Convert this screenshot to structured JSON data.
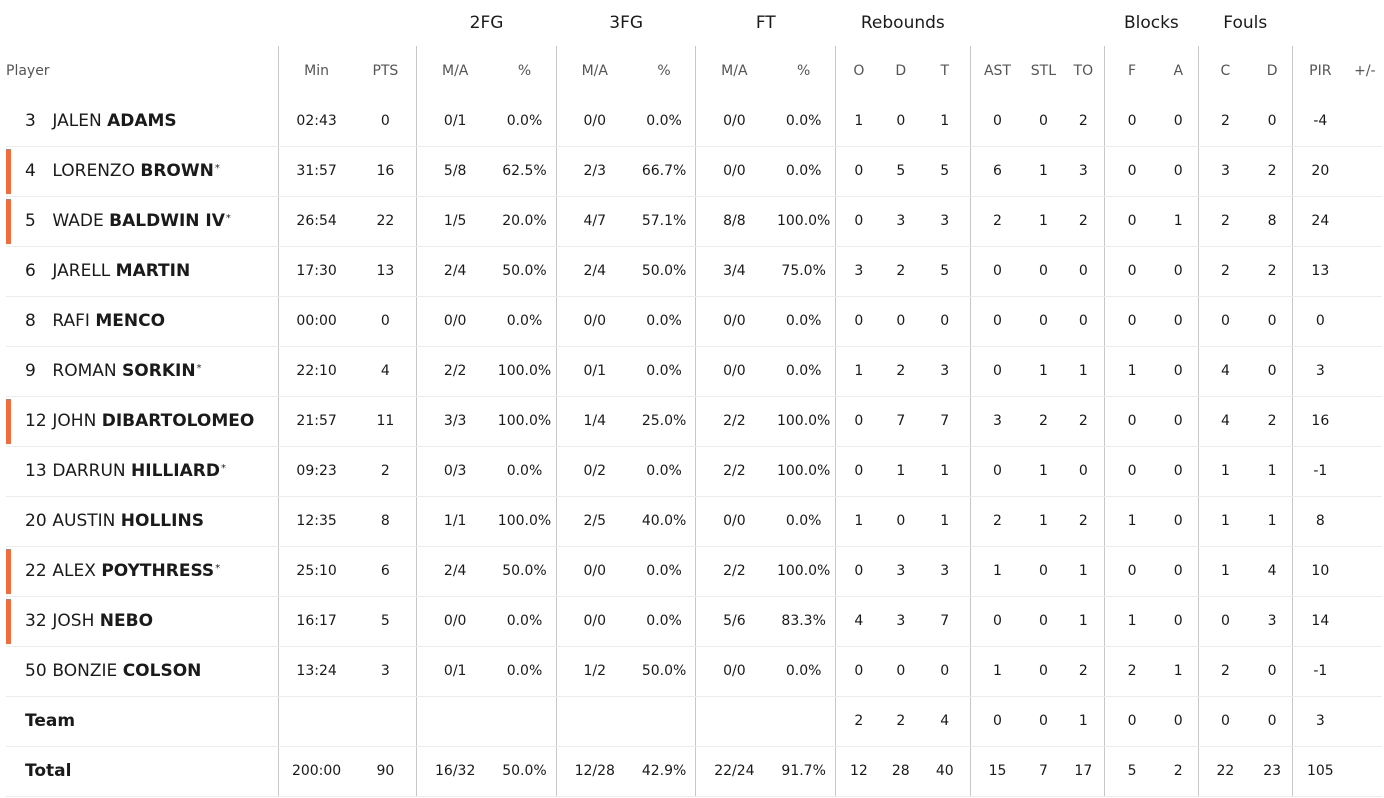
{
  "headers": {
    "groups": {
      "two_fg": "2FG",
      "three_fg": "3FG",
      "ft": "FT",
      "rebounds": "Rebounds",
      "blocks": "Blocks",
      "fouls": "Fouls"
    },
    "sub": {
      "player": "Player",
      "min": "Min",
      "pts": "PTS",
      "two_ma": "M/A",
      "two_pct": "%",
      "three_ma": "M/A",
      "three_pct": "%",
      "ft_ma": "M/A",
      "ft_pct": "%",
      "reb_o": "O",
      "reb_d": "D",
      "reb_t": "T",
      "ast": "AST",
      "stl": "STL",
      "to": "TO",
      "blk_f": "F",
      "blk_a": "A",
      "foul_c": "C",
      "foul_d": "D",
      "pir": "PIR",
      "pm": "+/-"
    }
  },
  "colors": {
    "starter_marker": "#f26b3a",
    "divider": "#c8c8c8"
  },
  "players": [
    {
      "num": "3",
      "first": "JALEN",
      "last": "ADAMS",
      "star": "",
      "starter": false,
      "min": "02:43",
      "pts": "0",
      "two_ma": "0/1",
      "two_pct": "0.0%",
      "three_ma": "0/0",
      "three_pct": "0.0%",
      "ft_ma": "0/0",
      "ft_pct": "0.0%",
      "o": "1",
      "d": "0",
      "t": "1",
      "ast": "0",
      "stl": "0",
      "to": "2",
      "bf": "0",
      "ba": "0",
      "fc": "2",
      "fd": "0",
      "pir": "-4",
      "pm": ""
    },
    {
      "num": "4",
      "first": "LORENZO",
      "last": "BROWN",
      "star": "*",
      "starter": true,
      "min": "31:57",
      "pts": "16",
      "two_ma": "5/8",
      "two_pct": "62.5%",
      "three_ma": "2/3",
      "three_pct": "66.7%",
      "ft_ma": "0/0",
      "ft_pct": "0.0%",
      "o": "0",
      "d": "5",
      "t": "5",
      "ast": "6",
      "stl": "1",
      "to": "3",
      "bf": "0",
      "ba": "0",
      "fc": "3",
      "fd": "2",
      "pir": "20",
      "pm": ""
    },
    {
      "num": "5",
      "first": "WADE",
      "last": "BALDWIN IV",
      "star": "*",
      "starter": true,
      "min": "26:54",
      "pts": "22",
      "two_ma": "1/5",
      "two_pct": "20.0%",
      "three_ma": "4/7",
      "three_pct": "57.1%",
      "ft_ma": "8/8",
      "ft_pct": "100.0%",
      "o": "0",
      "d": "3",
      "t": "3",
      "ast": "2",
      "stl": "1",
      "to": "2",
      "bf": "0",
      "ba": "1",
      "fc": "2",
      "fd": "8",
      "pir": "24",
      "pm": ""
    },
    {
      "num": "6",
      "first": "JARELL",
      "last": "MARTIN",
      "star": "",
      "starter": false,
      "min": "17:30",
      "pts": "13",
      "two_ma": "2/4",
      "two_pct": "50.0%",
      "three_ma": "2/4",
      "three_pct": "50.0%",
      "ft_ma": "3/4",
      "ft_pct": "75.0%",
      "o": "3",
      "d": "2",
      "t": "5",
      "ast": "0",
      "stl": "0",
      "to": "0",
      "bf": "0",
      "ba": "0",
      "fc": "2",
      "fd": "2",
      "pir": "13",
      "pm": ""
    },
    {
      "num": "8",
      "first": "RAFI",
      "last": "MENCO",
      "star": "",
      "starter": false,
      "min": "00:00",
      "pts": "0",
      "two_ma": "0/0",
      "two_pct": "0.0%",
      "three_ma": "0/0",
      "three_pct": "0.0%",
      "ft_ma": "0/0",
      "ft_pct": "0.0%",
      "o": "0",
      "d": "0",
      "t": "0",
      "ast": "0",
      "stl": "0",
      "to": "0",
      "bf": "0",
      "ba": "0",
      "fc": "0",
      "fd": "0",
      "pir": "0",
      "pm": ""
    },
    {
      "num": "9",
      "first": "ROMAN",
      "last": "SORKIN",
      "star": "*",
      "starter": false,
      "min": "22:10",
      "pts": "4",
      "two_ma": "2/2",
      "two_pct": "100.0%",
      "three_ma": "0/1",
      "three_pct": "0.0%",
      "ft_ma": "0/0",
      "ft_pct": "0.0%",
      "o": "1",
      "d": "2",
      "t": "3",
      "ast": "0",
      "stl": "1",
      "to": "1",
      "bf": "1",
      "ba": "0",
      "fc": "4",
      "fd": "0",
      "pir": "3",
      "pm": ""
    },
    {
      "num": "12",
      "first": "JOHN",
      "last": "DIBARTOLOMEO",
      "star": "",
      "starter": true,
      "min": "21:57",
      "pts": "11",
      "two_ma": "3/3",
      "two_pct": "100.0%",
      "three_ma": "1/4",
      "three_pct": "25.0%",
      "ft_ma": "2/2",
      "ft_pct": "100.0%",
      "o": "0",
      "d": "7",
      "t": "7",
      "ast": "3",
      "stl": "2",
      "to": "2",
      "bf": "0",
      "ba": "0",
      "fc": "4",
      "fd": "2",
      "pir": "16",
      "pm": ""
    },
    {
      "num": "13",
      "first": "DARRUN",
      "last": "HILLIARD",
      "star": "*",
      "starter": false,
      "min": "09:23",
      "pts": "2",
      "two_ma": "0/3",
      "two_pct": "0.0%",
      "three_ma": "0/2",
      "three_pct": "0.0%",
      "ft_ma": "2/2",
      "ft_pct": "100.0%",
      "o": "0",
      "d": "1",
      "t": "1",
      "ast": "0",
      "stl": "1",
      "to": "0",
      "bf": "0",
      "ba": "0",
      "fc": "1",
      "fd": "1",
      "pir": "-1",
      "pm": ""
    },
    {
      "num": "20",
      "first": "AUSTIN",
      "last": "HOLLINS",
      "star": "",
      "starter": false,
      "min": "12:35",
      "pts": "8",
      "two_ma": "1/1",
      "two_pct": "100.0%",
      "three_ma": "2/5",
      "three_pct": "40.0%",
      "ft_ma": "0/0",
      "ft_pct": "0.0%",
      "o": "1",
      "d": "0",
      "t": "1",
      "ast": "2",
      "stl": "1",
      "to": "2",
      "bf": "1",
      "ba": "0",
      "fc": "1",
      "fd": "1",
      "pir": "8",
      "pm": ""
    },
    {
      "num": "22",
      "first": "ALEX",
      "last": "POYTHRESS",
      "star": "*",
      "starter": true,
      "min": "25:10",
      "pts": "6",
      "two_ma": "2/4",
      "two_pct": "50.0%",
      "three_ma": "0/0",
      "three_pct": "0.0%",
      "ft_ma": "2/2",
      "ft_pct": "100.0%",
      "o": "0",
      "d": "3",
      "t": "3",
      "ast": "1",
      "stl": "0",
      "to": "1",
      "bf": "0",
      "ba": "0",
      "fc": "1",
      "fd": "4",
      "pir": "10",
      "pm": ""
    },
    {
      "num": "32",
      "first": "JOSH",
      "last": "NEBO",
      "star": "",
      "starter": true,
      "min": "16:17",
      "pts": "5",
      "two_ma": "0/0",
      "two_pct": "0.0%",
      "three_ma": "0/0",
      "three_pct": "0.0%",
      "ft_ma": "5/6",
      "ft_pct": "83.3%",
      "o": "4",
      "d": "3",
      "t": "7",
      "ast": "0",
      "stl": "0",
      "to": "1",
      "bf": "1",
      "ba": "0",
      "fc": "0",
      "fd": "3",
      "pir": "14",
      "pm": ""
    },
    {
      "num": "50",
      "first": "BONZIE",
      "last": "COLSON",
      "star": "",
      "starter": false,
      "min": "13:24",
      "pts": "3",
      "two_ma": "0/1",
      "two_pct": "0.0%",
      "three_ma": "1/2",
      "three_pct": "50.0%",
      "ft_ma": "0/0",
      "ft_pct": "0.0%",
      "o": "0",
      "d": "0",
      "t": "0",
      "ast": "1",
      "stl": "0",
      "to": "2",
      "bf": "2",
      "ba": "1",
      "fc": "2",
      "fd": "0",
      "pir": "-1",
      "pm": ""
    }
  ],
  "team": {
    "label": "Team",
    "min": "",
    "pts": "",
    "two_ma": "",
    "two_pct": "",
    "three_ma": "",
    "three_pct": "",
    "ft_ma": "",
    "ft_pct": "",
    "o": "2",
    "d": "2",
    "t": "4",
    "ast": "0",
    "stl": "0",
    "to": "1",
    "bf": "0",
    "ba": "0",
    "fc": "0",
    "fd": "0",
    "pir": "3",
    "pm": ""
  },
  "total": {
    "label": "Total",
    "min": "200:00",
    "pts": "90",
    "two_ma": "16/32",
    "two_pct": "50.0%",
    "three_ma": "12/28",
    "three_pct": "42.9%",
    "ft_ma": "22/24",
    "ft_pct": "91.7%",
    "o": "12",
    "d": "28",
    "t": "40",
    "ast": "15",
    "stl": "7",
    "to": "17",
    "bf": "5",
    "ba": "2",
    "fc": "22",
    "fd": "23",
    "pir": "105",
    "pm": ""
  }
}
